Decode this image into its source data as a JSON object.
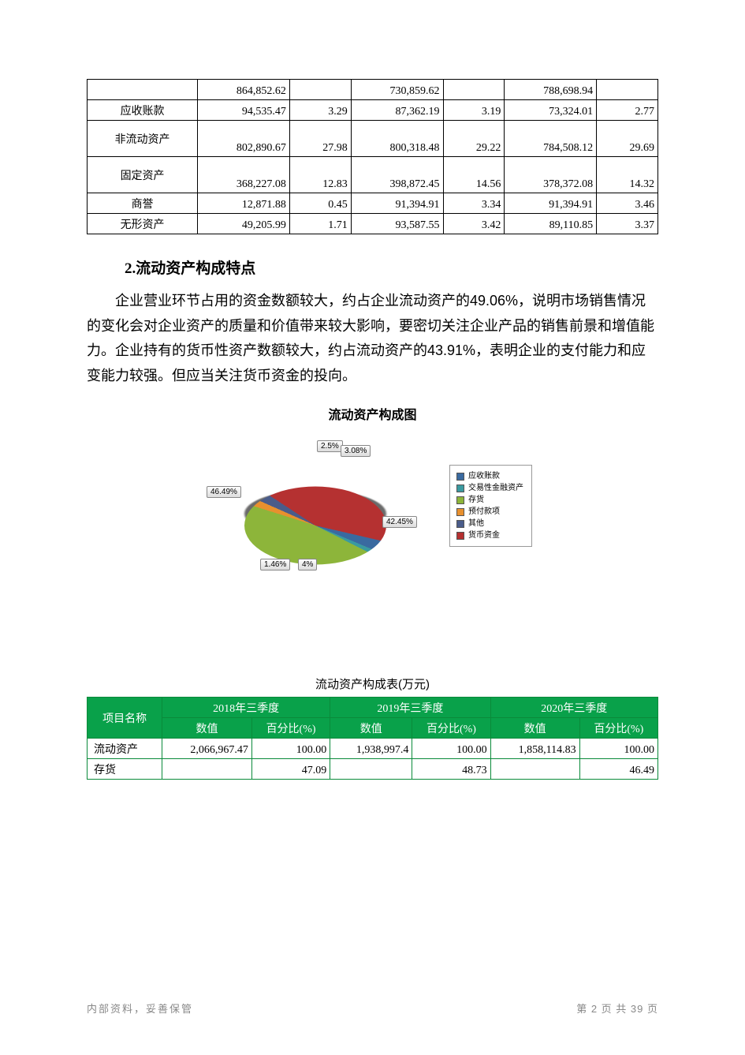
{
  "table1": {
    "columns": 7,
    "col_widths_pct": [
      18,
      15,
      10,
      15,
      10,
      15,
      10
    ],
    "rows": [
      {
        "label": "",
        "cells": [
          "864,852.62",
          "",
          "730,859.62",
          "",
          "788,698.94",
          ""
        ],
        "tall": false
      },
      {
        "label": "应收账款",
        "cells": [
          "94,535.47",
          "3.29",
          "87,362.19",
          "3.19",
          "73,324.01",
          "2.77"
        ],
        "tall": false
      },
      {
        "label": "非流动资产",
        "cells": [
          "802,890.67",
          "27.98",
          "800,318.48",
          "29.22",
          "784,508.12",
          "29.69"
        ],
        "tall": true
      },
      {
        "label": "固定资产",
        "cells": [
          "368,227.08",
          "12.83",
          "398,872.45",
          "14.56",
          "378,372.08",
          "14.32"
        ],
        "tall": true
      },
      {
        "label": "商誉",
        "cells": [
          "12,871.88",
          "0.45",
          "91,394.91",
          "3.34",
          "91,394.91",
          "3.46"
        ],
        "tall": false
      },
      {
        "label": "无形资产",
        "cells": [
          "49,205.99",
          "1.71",
          "93,587.55",
          "3.42",
          "89,110.85",
          "3.37"
        ],
        "tall": false
      }
    ]
  },
  "heading": "2.流动资产构成特点",
  "paragraph": "企业营业环节占用的资金数额较大，约占企业流动资产的49.06%，说明市场销售情况的变化会对企业资产的质量和价值带来较大影响，要密切关注企业产品的销售前景和增值能力。企业持有的货币性资产数额较大，约占流动资产的43.91%，表明企业的支付能力和应变能力较强。但应当关注货币资金的投向。",
  "chart": {
    "title": "流动资产构成图",
    "type": "pie",
    "background_color": "#ffffff",
    "title_fontsize": 16,
    "label_fontsize": 10,
    "slices": [
      {
        "label": "货币资金",
        "value": 42.45,
        "color": "#b53131",
        "label_text": "42.45%"
      },
      {
        "label": "存货",
        "value": 46.49,
        "color": "#8db53a",
        "label_text": "46.49%"
      },
      {
        "label": "预付款项",
        "value": 2.5,
        "color": "#e8902e",
        "label_text": "2.5%"
      },
      {
        "label": "其他",
        "value": 3.08,
        "color": "#4a5c8a",
        "label_text": "3.08%"
      },
      {
        "label": "应收账款",
        "value": 4.0,
        "color": "#3a6aa0",
        "label_text": "4%"
      },
      {
        "label": "交易性金融资产",
        "value": 1.46,
        "color": "#3a9aa0",
        "label_text": "1.46%"
      }
    ],
    "legend": [
      {
        "label": "应收账款",
        "color": "#3a6aa0"
      },
      {
        "label": "交易性金融资产",
        "color": "#3a9aa0"
      },
      {
        "label": "存货",
        "color": "#8db53a"
      },
      {
        "label": "预付款项",
        "color": "#e8902e"
      },
      {
        "label": "其他",
        "color": "#4a5c8a"
      },
      {
        "label": "货币资金",
        "color": "#b53131"
      }
    ],
    "label_box_bg": "#e9e9e9",
    "label_box_border": "#888888",
    "legend_border": "#999999"
  },
  "table2": {
    "title": "流动资产构成表(万元)",
    "header_bg": "#09a14a",
    "header_fg": "#ffffff",
    "border_color": "#0a8a3a",
    "col_headers": {
      "name": "项目名称",
      "periods": [
        "2018年三季度",
        "2019年三季度",
        "2020年三季度"
      ],
      "sub": [
        "数值",
        "百分比(%)"
      ]
    },
    "rows": [
      {
        "label": "流动资产",
        "cells": [
          "2,066,967.47",
          "100.00",
          "1,938,997.4",
          "100.00",
          "1,858,114.83",
          "100.00"
        ],
        "tall": true
      },
      {
        "label": "存货",
        "cells": [
          "",
          "47.09",
          "",
          "48.73",
          "",
          "46.49"
        ],
        "tall": false
      }
    ]
  },
  "footer": {
    "left": "内部资料，妥善保管",
    "right_prefix": "第 ",
    "page_current": "2",
    "right_mid": " 页   共 ",
    "page_total": "39",
    "right_suffix": " 页"
  }
}
